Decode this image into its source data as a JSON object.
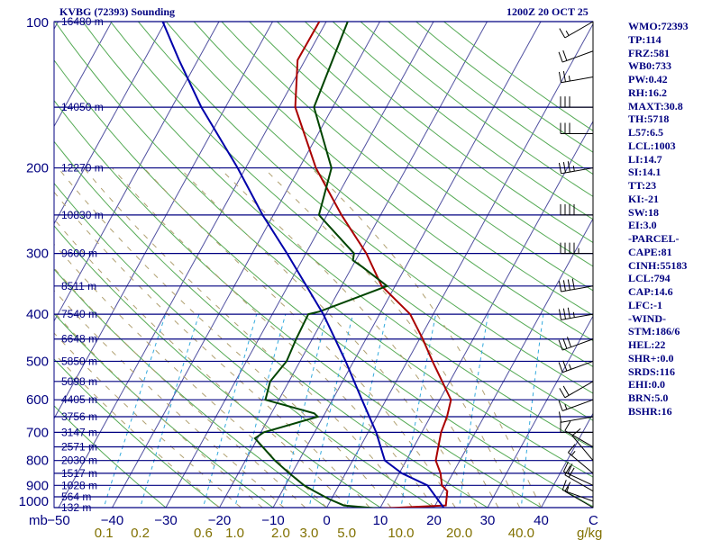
{
  "header": {
    "station": "KVBG (72393) Sounding",
    "time": "1200Z 20 OCT 25"
  },
  "indices": [
    "WMO:72393",
    "TP:114",
    "FRZ:581",
    "WB0:733",
    "PW:0.42",
    "RH:16.2",
    "MAXT:30.8",
    "TH:5718",
    "L57:6.5",
    "LCL:1003",
    "LI:14.7",
    "SI:14.1",
    "TT:23",
    "KI:-21",
    "SW:18",
    "EI:3.0",
    "-PARCEL-",
    "CAPE:81",
    "CINH:55183",
    "LCL:794",
    "CAP:14.6",
    "LFC:-1",
    "-WIND-",
    "STM:186/6",
    "HEL:22",
    "SHR+:0.0",
    "SRDS:116",
    "EHI:0.0",
    "BRN:5.0",
    "BSHR:16"
  ],
  "colors": {
    "isobar": "#000080",
    "isotherm": "#5050a0",
    "dry_adiabat": "#55aa55",
    "moist_adiabat": "#b0a070",
    "mixing_ratio": "#33aadd",
    "temperature": "#aa0000",
    "dewpoint": "#004400",
    "parcel": "#0000aa",
    "axis_text": "#000080",
    "mixing_text": "#807000",
    "wind": "#000000"
  },
  "chart_data": {
    "type": "line",
    "title": "KVBG (72393) Sounding 1200Z 20 OCT 25",
    "xlabel": "C",
    "ylabel": "mb",
    "xlim": [
      -50,
      50
    ],
    "ylim": [
      1000,
      100
    ],
    "pressure_ticks": [
      "100",
      "200",
      "300",
      "400",
      "500",
      "600",
      "700",
      "800",
      "900",
      "1000"
    ],
    "pressure_tick_values": [
      100,
      200,
      300,
      400,
      500,
      600,
      700,
      800,
      900,
      1000
    ],
    "temperature_ticks": [
      "−50",
      "−40",
      "−30",
      "−20",
      "−10",
      "0",
      "10",
      "20",
      "30",
      "40"
    ],
    "temperature_tick_values": [
      -50,
      -40,
      -30,
      -20,
      -10,
      0,
      10,
      20,
      30,
      40
    ],
    "unit_label": "C",
    "mixing_ratio_ticks": [
      "0.1",
      "0.2",
      "0.6",
      "1.0",
      "2.0",
      "3.0",
      "5.0",
      "10.0",
      "20.0",
      "40.0"
    ],
    "mixing_ratio_values": [
      0.1,
      0.2,
      0.6,
      1.0,
      2.0,
      3.0,
      5.0,
      10.0,
      20.0,
      40.0
    ],
    "mixing_ratio_unit": "g/kg",
    "height_levels": [
      {
        "p": 100,
        "label": "16480 m"
      },
      {
        "p": 150,
        "label": "14050 m"
      },
      {
        "p": 200,
        "label": "12270 m"
      },
      {
        "p": 250,
        "label": "10830 m"
      },
      {
        "p": 300,
        "label": "9600 m"
      },
      {
        "p": 350,
        "label": "8511 m"
      },
      {
        "p": 400,
        "label": "7540 m"
      },
      {
        "p": 450,
        "label": "6648 m"
      },
      {
        "p": 500,
        "label": "5850 m"
      },
      {
        "p": 550,
        "label": "5098 m"
      },
      {
        "p": 600,
        "label": "4405 m"
      },
      {
        "p": 650,
        "label": "3756 m"
      },
      {
        "p": 700,
        "label": "3147 m"
      },
      {
        "p": 750,
        "label": "2571 m"
      },
      {
        "p": 800,
        "label": "2030 m"
      },
      {
        "p": 850,
        "label": "1517 m"
      },
      {
        "p": 900,
        "label": "1028 m"
      },
      {
        "p": 950,
        "label": "564 m"
      },
      {
        "p": 1000,
        "label": "132 m"
      }
    ],
    "series": [
      {
        "name": "temperature",
        "points": [
          [
            1004,
            10.4
          ],
          [
            990,
            22.0
          ],
          [
            925,
            20.8
          ],
          [
            900,
            19.2
          ],
          [
            850,
            17.7
          ],
          [
            800,
            15.5
          ],
          [
            700,
            13.6
          ],
          [
            650,
            13.1
          ],
          [
            600,
            12.1
          ],
          [
            500,
            4.7
          ],
          [
            450,
            0.6
          ],
          [
            400,
            -4.3
          ],
          [
            350,
            -12.5
          ],
          [
            300,
            -18.7
          ],
          [
            250,
            -27.3
          ],
          [
            200,
            -36.9
          ],
          [
            150,
            -47.0
          ],
          [
            120,
            -51.4
          ],
          [
            100,
            -51.3
          ]
        ]
      },
      {
        "name": "dewpoint",
        "points": [
          [
            1004,
            9.5
          ],
          [
            990,
            3.0
          ],
          [
            960,
            -0.5
          ],
          [
            925,
            -4.0
          ],
          [
            900,
            -6.5
          ],
          [
            850,
            -10.5
          ],
          [
            800,
            -14.5
          ],
          [
            720,
            -20.5
          ],
          [
            700,
            -19.5
          ],
          [
            650,
            -11.0
          ],
          [
            640,
            -12.0
          ],
          [
            600,
            -22.5
          ],
          [
            550,
            -23.5
          ],
          [
            500,
            -22.5
          ],
          [
            450,
            -23.0
          ],
          [
            400,
            -23.3
          ],
          [
            395,
            -21.5
          ],
          [
            350,
            -11.5
          ],
          [
            320,
            -18.0
          ],
          [
            310,
            -20.5
          ],
          [
            300,
            -21.0
          ],
          [
            250,
            -31.5
          ],
          [
            200,
            -34.0
          ],
          [
            150,
            -43.5
          ],
          [
            100,
            -46.0
          ]
        ]
      },
      {
        "name": "parcel",
        "points": [
          [
            1004,
            22.0
          ],
          [
            900,
            16.5
          ],
          [
            850,
            10.5
          ],
          [
            800,
            6.0
          ],
          [
            700,
            1.5
          ],
          [
            600,
            -4.5
          ],
          [
            500,
            -11.5
          ],
          [
            400,
            -20.5
          ],
          [
            300,
            -33.5
          ],
          [
            250,
            -42.0
          ],
          [
            200,
            -51.5
          ],
          [
            150,
            -64.5
          ],
          [
            120,
            -73.5
          ],
          [
            100,
            -80.5
          ]
        ]
      }
    ],
    "winds": [
      {
        "p": 1000,
        "dir": 300,
        "kt": 10
      },
      {
        "p": 970,
        "dir": 290,
        "kt": 15
      },
      {
        "p": 925,
        "dir": 300,
        "kt": 20
      },
      {
        "p": 900,
        "dir": 295,
        "kt": 20
      },
      {
        "p": 850,
        "dir": 310,
        "kt": 15
      },
      {
        "p": 800,
        "dir": 320,
        "kt": 10
      },
      {
        "p": 750,
        "dir": 300,
        "kt": 10
      },
      {
        "p": 700,
        "dir": 270,
        "kt": 10
      },
      {
        "p": 650,
        "dir": 260,
        "kt": 10
      },
      {
        "p": 600,
        "dir": 250,
        "kt": 15
      },
      {
        "p": 550,
        "dir": 240,
        "kt": 20
      },
      {
        "p": 500,
        "dir": 250,
        "kt": 25
      },
      {
        "p": 450,
        "dir": 250,
        "kt": 30
      },
      {
        "p": 400,
        "dir": 260,
        "kt": 35
      },
      {
        "p": 350,
        "dir": 260,
        "kt": 40
      },
      {
        "p": 300,
        "dir": 270,
        "kt": 45
      },
      {
        "p": 250,
        "dir": 270,
        "kt": 40
      },
      {
        "p": 200,
        "dir": 260,
        "kt": 35
      },
      {
        "p": 170,
        "dir": 270,
        "kt": 30
      },
      {
        "p": 150,
        "dir": 270,
        "kt": 30
      },
      {
        "p": 130,
        "dir": 260,
        "kt": 25
      },
      {
        "p": 115,
        "dir": 250,
        "kt": 20
      },
      {
        "p": 100,
        "dir": 240,
        "kt": 15
      }
    ]
  }
}
